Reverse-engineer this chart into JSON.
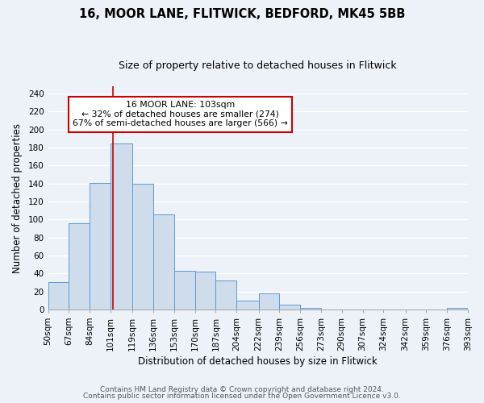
{
  "title": "16, MOOR LANE, FLITWICK, BEDFORD, MK45 5BB",
  "subtitle": "Size of property relative to detached houses in Flitwick",
  "xlabel": "Distribution of detached houses by size in Flitwick",
  "ylabel": "Number of detached properties",
  "bin_edges": [
    50,
    67,
    84,
    101,
    119,
    136,
    153,
    170,
    187,
    204,
    222,
    239,
    256,
    273,
    290,
    307,
    324,
    342,
    359,
    376,
    393
  ],
  "bar_heights": [
    30,
    96,
    141,
    185,
    140,
    106,
    43,
    42,
    32,
    10,
    18,
    5,
    2,
    0,
    0,
    0,
    0,
    0,
    0,
    2
  ],
  "bar_color": "#cfdcec",
  "bar_edge_color": "#5b9bd5",
  "property_line_x": 103,
  "property_line_color": "#cc0000",
  "annotation_text": "16 MOOR LANE: 103sqm\n← 32% of detached houses are smaller (274)\n67% of semi-detached houses are larger (566) →",
  "annotation_box_color": "white",
  "annotation_box_edge_color": "#cc0000",
  "ylim": [
    0,
    248
  ],
  "yticks": [
    0,
    20,
    40,
    60,
    80,
    100,
    120,
    140,
    160,
    180,
    200,
    220,
    240
  ],
  "tick_labels": [
    "50sqm",
    "67sqm",
    "84sqm",
    "101sqm",
    "119sqm",
    "136sqm",
    "153sqm",
    "170sqm",
    "187sqm",
    "204sqm",
    "222sqm",
    "239sqm",
    "256sqm",
    "273sqm",
    "290sqm",
    "307sqm",
    "324sqm",
    "342sqm",
    "359sqm",
    "376sqm",
    "393sqm"
  ],
  "footer_line1": "Contains HM Land Registry data © Crown copyright and database right 2024.",
  "footer_line2": "Contains public sector information licensed under the Open Government Licence v3.0.",
  "background_color": "#edf2f8",
  "grid_color": "#ffffff",
  "title_fontsize": 10.5,
  "subtitle_fontsize": 9,
  "axis_label_fontsize": 8.5,
  "tick_fontsize": 7.5,
  "footer_fontsize": 6.5
}
